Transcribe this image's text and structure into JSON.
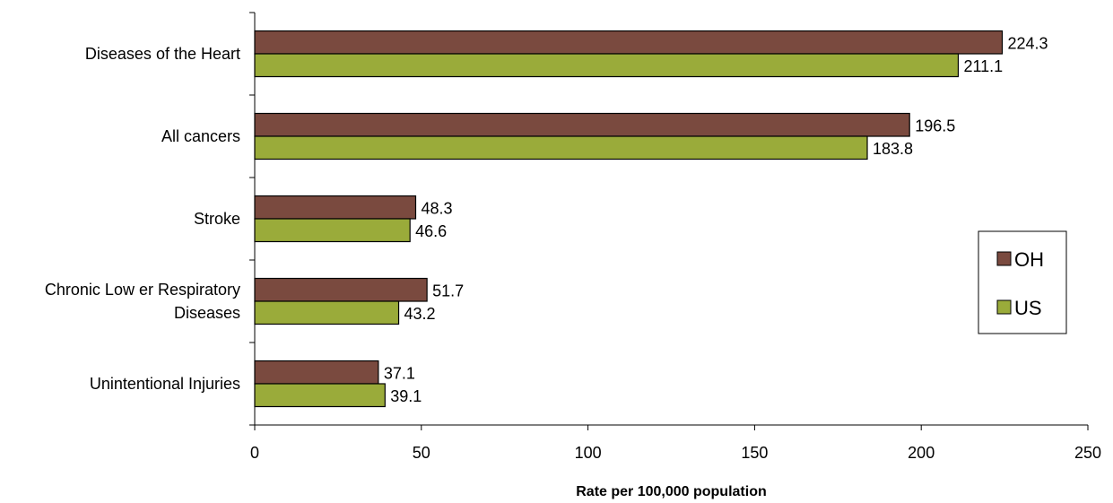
{
  "chart_data": {
    "type": "bar",
    "orientation": "horizontal",
    "title": "",
    "xlabel": "Rate per 100,000 population",
    "ylabel": "",
    "xlim": [
      0,
      250
    ],
    "x_ticks": [
      0,
      50,
      100,
      150,
      200,
      250
    ],
    "grid": false,
    "legend_position": "right",
    "categories": [
      [
        "Diseases of the Heart"
      ],
      [
        "All cancers"
      ],
      [
        "Stroke"
      ],
      [
        "Chronic Low er Respiratory",
        "Diseases"
      ],
      [
        "Unintentional Injuries"
      ]
    ],
    "series": [
      {
        "name": "OH",
        "color": "#7a4a3f",
        "values": [
          224.3,
          196.5,
          48.3,
          51.7,
          37.1
        ]
      },
      {
        "name": "US",
        "color": "#9aab3a",
        "values": [
          211.1,
          183.8,
          46.6,
          43.2,
          39.1
        ]
      }
    ]
  }
}
